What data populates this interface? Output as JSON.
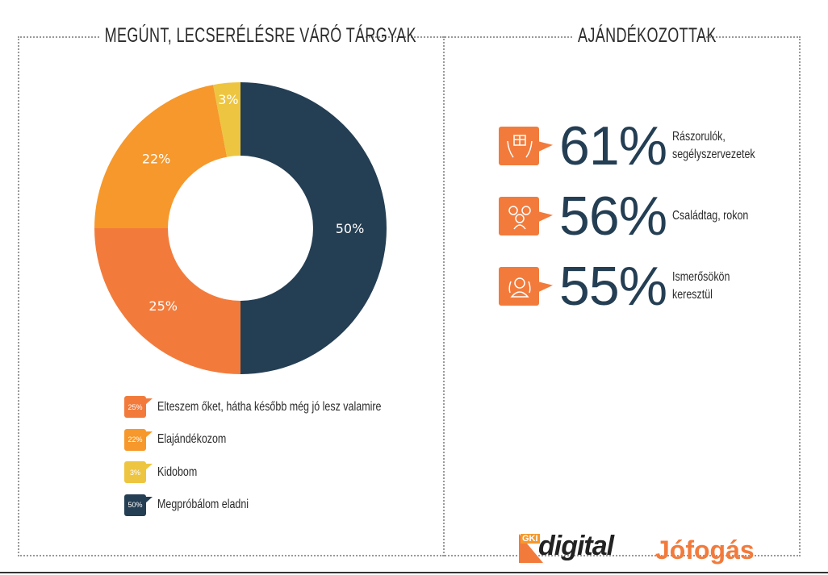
{
  "left_title": "MEGÚNT, LECSERÉLÉSRE VÁRÓ TÁRGYAK",
  "right_title": "AJÁNDÉKOZOTTAK",
  "chart_data": {
    "type": "pie",
    "subtype": "donut",
    "title": "MEGÚNT, LECSERÉLÉSRE VÁRÓ TÁRGYAK",
    "slices": [
      {
        "label": "Megpróbálom eladni",
        "value": 50,
        "display": "50%",
        "color": "#243E53"
      },
      {
        "label": "Elteszem őket, hátha később még jó lesz valamire",
        "value": 25,
        "display": "25%",
        "color": "#F27B3C"
      },
      {
        "label": "Elajándékozom",
        "value": 22,
        "display": "22%",
        "color": "#F6982B"
      },
      {
        "label": "Kidobom",
        "value": 3,
        "display": "3%",
        "color": "#EEC540"
      }
    ],
    "legend": [
      {
        "label": "Elteszem őket, hátha később még jó lesz valamire",
        "display": "25%",
        "color": "#F27B3C"
      },
      {
        "label": "Elajándékozom",
        "display": "22%",
        "color": "#F6982B"
      },
      {
        "label": "Kidobom",
        "display": "3%",
        "color": "#EEC540"
      },
      {
        "label": "Megpróbálom eladni",
        "display": "50%",
        "color": "#243E53"
      }
    ]
  },
  "stats": [
    {
      "value": "61%",
      "label": "Rászorulók, segélyszervezetek",
      "icon": "gift-hands-icon"
    },
    {
      "value": "56%",
      "label": "Családtag, rokon",
      "icon": "family-icon"
    },
    {
      "value": "55%",
      "label": "Ismerősökön keresztül",
      "icon": "friends-icon"
    }
  ],
  "logos": {
    "gki": "GKI",
    "digital": "digital",
    "jofogas": "Jófogás"
  }
}
